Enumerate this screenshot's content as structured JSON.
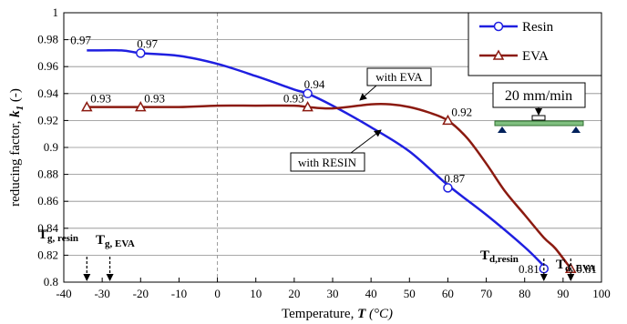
{
  "chart_data": {
    "type": "line",
    "xlabel_prefix": "Temperature, ",
    "xlabel_var": "T",
    "xlabel_unit": " (°C)",
    "ylabel_prefix": "reducing factor, ",
    "ylabel_var": "k",
    "ylabel_sub": "1",
    "ylabel_unit": " (-)",
    "xlim": [
      -40,
      100
    ],
    "ylim": [
      0.8,
      1.0
    ],
    "x_ticks": [
      "-40",
      "-30",
      "-20",
      "-10",
      "0",
      "10",
      "20",
      "30",
      "40",
      "50",
      "60",
      "70",
      "80",
      "90",
      "100"
    ],
    "y_ticks": [
      "0.8",
      "0.82",
      "0.84",
      "0.86",
      "0.88",
      "0.9",
      "0.92",
      "0.94",
      "0.96",
      "0.98",
      "1"
    ],
    "grid": "horizontal",
    "legend_position": "top-right",
    "series": [
      {
        "name": "Resin",
        "color": "#1f1fe0",
        "marker": "circle",
        "curve": [
          [
            -34,
            0.972
          ],
          [
            -25,
            0.972
          ],
          [
            -20,
            0.97
          ],
          [
            -10,
            0.968
          ],
          [
            0,
            0.962
          ],
          [
            10,
            0.953
          ],
          [
            20,
            0.943
          ],
          [
            23.5,
            0.94
          ],
          [
            30,
            0.931
          ],
          [
            40,
            0.915
          ],
          [
            50,
            0.897
          ],
          [
            60,
            0.872
          ],
          [
            70,
            0.85
          ],
          [
            80,
            0.826
          ],
          [
            85,
            0.812
          ],
          [
            86,
            0.81
          ]
        ],
        "points": [
          [
            -20,
            0.97
          ],
          [
            23.5,
            0.94
          ],
          [
            60,
            0.87
          ],
          [
            85,
            0.81
          ]
        ],
        "labels": [
          {
            "x": -34,
            "y": 0.972,
            "text": "0.97"
          },
          {
            "x": -20,
            "y": 0.97,
            "text": "0.97"
          },
          {
            "x": 23.5,
            "y": 0.94,
            "text": "0.94"
          },
          {
            "x": 60,
            "y": 0.87,
            "text": "0.87"
          },
          {
            "x": 85,
            "y": 0.81,
            "text": "0.81"
          }
        ]
      },
      {
        "name": "EVA",
        "color": "#8b1a10",
        "marker": "triangle",
        "curve": [
          [
            -34,
            0.93
          ],
          [
            -20,
            0.93
          ],
          [
            -10,
            0.93
          ],
          [
            0,
            0.931
          ],
          [
            10,
            0.931
          ],
          [
            20,
            0.931
          ],
          [
            23.5,
            0.93
          ],
          [
            30,
            0.929
          ],
          [
            40,
            0.932
          ],
          [
            45,
            0.932
          ],
          [
            50,
            0.93
          ],
          [
            55,
            0.926
          ],
          [
            60,
            0.92
          ],
          [
            65,
            0.907
          ],
          [
            70,
            0.888
          ],
          [
            75,
            0.867
          ],
          [
            80,
            0.85
          ],
          [
            85,
            0.833
          ],
          [
            88,
            0.825
          ],
          [
            92,
            0.81
          ]
        ],
        "points": [
          [
            -34,
            0.93
          ],
          [
            -20,
            0.93
          ],
          [
            23.5,
            0.93
          ],
          [
            60,
            0.92
          ],
          [
            92,
            0.81
          ]
        ],
        "labels": [
          {
            "x": -34,
            "y": 0.93,
            "text": "0.93"
          },
          {
            "x": -20,
            "y": 0.93,
            "text": "0.93"
          },
          {
            "x": 23.5,
            "y": 0.93,
            "text": "0.93"
          },
          {
            "x": 60,
            "y": 0.92,
            "text": "0.92"
          },
          {
            "x": 92,
            "y": 0.81,
            "text": "0.81"
          }
        ]
      }
    ],
    "annotations": {
      "with_eva": "with EVA",
      "with_resin": "with RESIN",
      "speed": "20 mm/min"
    },
    "temperature_markers": [
      {
        "base": "T",
        "sub": "g, resin",
        "x": -34
      },
      {
        "base": "T",
        "sub": "g, EVA",
        "x": -28
      },
      {
        "base": "T",
        "sub": "d,resin",
        "x": 85
      },
      {
        "base": "T",
        "sub": "d, EVA",
        "x": 92
      }
    ]
  }
}
